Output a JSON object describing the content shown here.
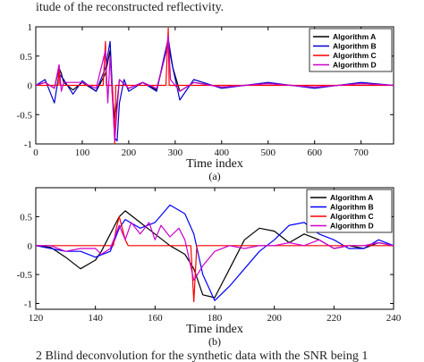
{
  "page_text": {
    "top": "itude of the reconstructed reflectivity.",
    "bottom": "2    Blind deconvolution for the synthetic data with the SNR being 1"
  },
  "chart_data": [
    {
      "type": "line",
      "title": "",
      "xlabel": "Time index",
      "ylabel": "",
      "caption": "(a)",
      "xlim": [
        0,
        770
      ],
      "ylim": [
        -1,
        1
      ],
      "xticks": [
        0,
        100,
        200,
        300,
        400,
        500,
        600,
        700
      ],
      "yticks": [
        -1,
        -0.5,
        0,
        0.5,
        1
      ],
      "ytick_labels": [
        "-1",
        "-0.5",
        "0",
        "0.5",
        "1"
      ],
      "grid": false,
      "legend": "top-right",
      "series": [
        {
          "name": "Algorithm A",
          "color": "#000000",
          "x": [
            0,
            20,
            40,
            50,
            55,
            60,
            80,
            100,
            130,
            150,
            160,
            165,
            170,
            175,
            180,
            200,
            230,
            260,
            275,
            285,
            295,
            310,
            340,
            400,
            500,
            600,
            700,
            770
          ],
          "y": [
            0,
            0.05,
            -0.05,
            0.3,
            0.2,
            0.05,
            -0.08,
            0.05,
            -0.1,
            0.2,
            0.6,
            -0.2,
            -0.55,
            -0.3,
            0.1,
            -0.05,
            0.05,
            -0.08,
            0.4,
            0.7,
            0.3,
            -0.1,
            0.05,
            -0.03,
            0.03,
            -0.03,
            0.03,
            0
          ]
        },
        {
          "name": "Algorithm B",
          "color": "#0000cc",
          "x": [
            0,
            20,
            40,
            50,
            60,
            80,
            100,
            130,
            150,
            160,
            165,
            170,
            175,
            180,
            190,
            200,
            230,
            260,
            275,
            285,
            295,
            310,
            340,
            400,
            500,
            600,
            700,
            770
          ],
          "y": [
            0,
            0.1,
            -0.3,
            0.2,
            0.1,
            -0.15,
            0.08,
            -0.1,
            0.3,
            0.75,
            -0.1,
            -0.9,
            -0.95,
            -0.3,
            0.1,
            -0.1,
            0.05,
            -0.1,
            0.45,
            0.8,
            0.3,
            -0.25,
            0.1,
            -0.05,
            0.05,
            -0.05,
            0.05,
            0
          ]
        },
        {
          "name": "Algorithm C",
          "color": "#ff0000",
          "x": [
            0,
            48,
            50,
            52,
            100,
            145,
            150,
            152,
            165,
            170,
            172,
            200,
            280,
            285,
            287,
            770
          ],
          "y": [
            0,
            0,
            0.35,
            0,
            0,
            0,
            0.75,
            0,
            0,
            -1,
            0,
            0,
            0,
            0.98,
            0,
            0
          ]
        },
        {
          "name": "Algorithm D",
          "color": "#cc00cc",
          "x": [
            0,
            20,
            40,
            50,
            55,
            60,
            80,
            100,
            130,
            150,
            155,
            160,
            170,
            175,
            180,
            200,
            230,
            260,
            280,
            285,
            290,
            310,
            340,
            400,
            500,
            600,
            700,
            770
          ],
          "y": [
            0,
            0.05,
            -0.05,
            0.35,
            -0.1,
            0.05,
            0.05,
            0.05,
            -0.05,
            0.6,
            -0.3,
            0.5,
            -0.95,
            -0.4,
            0.1,
            -0.05,
            0.05,
            -0.05,
            0.55,
            0.85,
            0.1,
            -0.1,
            0.05,
            -0.03,
            0.03,
            -0.03,
            0.03,
            0
          ]
        }
      ]
    },
    {
      "type": "line",
      "title": "",
      "xlabel": "Time index",
      "ylabel": "",
      "caption": "(b)",
      "xlim": [
        120,
        240
      ],
      "ylim": [
        -1.1,
        1
      ],
      "xticks": [
        120,
        140,
        160,
        180,
        200,
        220,
        240
      ],
      "yticks": [
        -1,
        -0.5,
        0,
        0.5
      ],
      "ytick_labels": [
        "-1",
        "-0.5",
        "0",
        "0.5"
      ],
      "grid": false,
      "legend": "top-right",
      "series": [
        {
          "name": "Algorithm A",
          "color": "#000000",
          "x": [
            120,
            125,
            130,
            135,
            140,
            142,
            145,
            148,
            150,
            155,
            160,
            165,
            170,
            173,
            176,
            180,
            185,
            190,
            195,
            200,
            205,
            210,
            215,
            220,
            225,
            230,
            235,
            240
          ],
          "y": [
            0,
            -0.03,
            -0.2,
            -0.4,
            -0.25,
            -0.1,
            0.2,
            0.5,
            0.6,
            0.4,
            0.2,
            0.0,
            -0.15,
            -0.4,
            -0.85,
            -0.9,
            -0.4,
            0.1,
            0.3,
            0.25,
            0.05,
            0.2,
            0.1,
            -0.05,
            0.0,
            -0.05,
            0.05,
            0
          ]
        },
        {
          "name": "Algorithm B",
          "color": "#0000ff",
          "x": [
            120,
            125,
            130,
            135,
            140,
            145,
            148,
            150,
            155,
            160,
            165,
            170,
            173,
            176,
            180,
            185,
            190,
            195,
            200,
            205,
            210,
            215,
            220,
            225,
            230,
            235,
            240
          ],
          "y": [
            0,
            -0.05,
            -0.1,
            -0.1,
            -0.2,
            -0.1,
            0.3,
            0.45,
            0.3,
            0.4,
            0.7,
            0.55,
            0.2,
            -0.5,
            -0.95,
            -0.7,
            -0.4,
            -0.1,
            0.1,
            0.35,
            0.4,
            0.2,
            0.1,
            -0.05,
            -0.05,
            0.1,
            0
          ]
        },
        {
          "name": "Algorithm C",
          "color": "#ff0000",
          "x": [
            120,
            146,
            147,
            148,
            149,
            150,
            151,
            172,
            173,
            174,
            240
          ],
          "y": [
            0,
            0,
            0.3,
            0.5,
            0.3,
            0.1,
            0,
            0,
            -0.97,
            0,
            0
          ]
        },
        {
          "name": "Algorithm D",
          "color": "#cc00cc",
          "x": [
            120,
            125,
            130,
            135,
            140,
            142,
            145,
            148,
            150,
            152,
            155,
            158,
            160,
            162,
            165,
            168,
            170,
            173,
            176,
            180,
            185,
            190,
            195,
            200,
            205,
            210,
            215,
            220,
            225,
            230,
            235,
            240
          ],
          "y": [
            0,
            0,
            -0.1,
            -0.05,
            -0.05,
            -0.15,
            -0.05,
            0.35,
            0.1,
            0.4,
            0.2,
            0.4,
            0.1,
            0.35,
            0.15,
            0.3,
            0.1,
            -0.6,
            -0.35,
            -0.1,
            0.0,
            -0.05,
            0.0,
            0.0,
            0.05,
            0.0,
            0.1,
            -0.05,
            0.0,
            0.0,
            0.05,
            0
          ]
        }
      ]
    }
  ]
}
